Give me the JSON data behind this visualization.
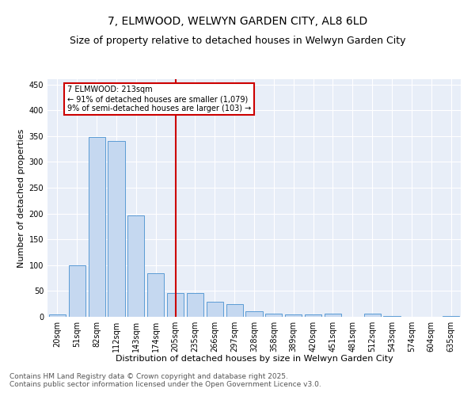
{
  "title": "7, ELMWOOD, WELWYN GARDEN CITY, AL8 6LD",
  "subtitle": "Size of property relative to detached houses in Welwyn Garden City",
  "xlabel": "Distribution of detached houses by size in Welwyn Garden City",
  "ylabel": "Number of detached properties",
  "categories": [
    "20sqm",
    "51sqm",
    "82sqm",
    "112sqm",
    "143sqm",
    "174sqm",
    "205sqm",
    "235sqm",
    "266sqm",
    "297sqm",
    "328sqm",
    "358sqm",
    "389sqm",
    "420sqm",
    "451sqm",
    "481sqm",
    "512sqm",
    "543sqm",
    "574sqm",
    "604sqm",
    "635sqm"
  ],
  "values": [
    5,
    99,
    348,
    341,
    197,
    85,
    46,
    46,
    29,
    24,
    10,
    6,
    5,
    4,
    6,
    0,
    6,
    2,
    0,
    0,
    2
  ],
  "bar_color": "#c5d8f0",
  "bar_edge_color": "#5b9bd5",
  "annotation_text": "7 ELMWOOD: 213sqm\n← 91% of detached houses are smaller (1,079)\n9% of semi-detached houses are larger (103) →",
  "annotation_box_color": "#ffffff",
  "annotation_box_edge_color": "#cc0000",
  "vline_x": 6,
  "vline_color": "#cc0000",
  "ylim": [
    0,
    460
  ],
  "yticks": [
    0,
    50,
    100,
    150,
    200,
    250,
    300,
    350,
    400,
    450
  ],
  "background_color": "#e8eef8",
  "grid_color": "#ffffff",
  "footer": "Contains HM Land Registry data © Crown copyright and database right 2025.\nContains public sector information licensed under the Open Government Licence v3.0.",
  "title_fontsize": 10,
  "xlabel_fontsize": 8,
  "ylabel_fontsize": 8,
  "tick_fontsize": 7,
  "footer_fontsize": 6.5
}
